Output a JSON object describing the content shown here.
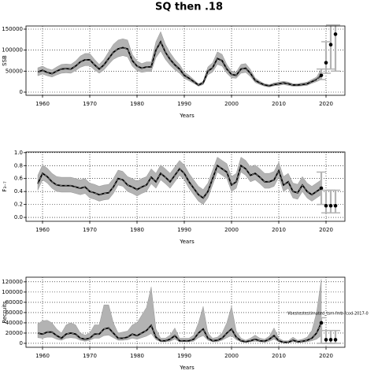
{
  "title": "SQ then .18",
  "chart_data": [
    {
      "type": "line",
      "ylabel": "SSB",
      "xlabel": "Years",
      "grid": true,
      "color": "#000000",
      "band_color": "#b3b3b3",
      "xlim": [
        1956.5,
        2024
      ],
      "xticks": [
        1960,
        1970,
        1980,
        1990,
        2000,
        2010,
        2020
      ],
      "ylim": [
        -7500,
        157500
      ],
      "yticks": [
        0,
        50000,
        100000,
        150000
      ],
      "x": [
        1959,
        1960,
        1961,
        1962,
        1963,
        1964,
        1965,
        1966,
        1967,
        1968,
        1969,
        1970,
        1971,
        1972,
        1973,
        1974,
        1975,
        1976,
        1977,
        1978,
        1979,
        1980,
        1981,
        1982,
        1983,
        1984,
        1985,
        1986,
        1987,
        1988,
        1989,
        1990,
        1991,
        1992,
        1993,
        1994,
        1995,
        1996,
        1997,
        1998,
        1999,
        2000,
        2001,
        2002,
        2003,
        2004,
        2005,
        2006,
        2007,
        2008,
        2009,
        2010,
        2011,
        2012,
        2013,
        2014,
        2015,
        2016,
        2017,
        2018,
        2019
      ],
      "values": [
        48000,
        52000,
        47000,
        44000,
        50000,
        55000,
        56000,
        55000,
        62000,
        72000,
        77000,
        77000,
        65000,
        55000,
        65000,
        80000,
        95000,
        103000,
        106000,
        103000,
        75000,
        62000,
        57000,
        60000,
        60000,
        100000,
        120000,
        95000,
        78000,
        65000,
        55000,
        40000,
        33000,
        25000,
        17000,
        22000,
        50000,
        58000,
        80000,
        75000,
        55000,
        42000,
        40000,
        55000,
        57000,
        45000,
        28000,
        22000,
        17000,
        15000,
        18000,
        20000,
        22000,
        20000,
        17000,
        17000,
        18000,
        20000,
        25000,
        30000,
        40000
      ],
      "lower": [
        39000,
        43000,
        39000,
        36000,
        41000,
        45000,
        46000,
        45000,
        51000,
        59000,
        63000,
        63000,
        53000,
        45000,
        53000,
        66000,
        78000,
        84000,
        87000,
        84000,
        62000,
        51000,
        47000,
        49000,
        49000,
        82000,
        98000,
        78000,
        64000,
        53000,
        45000,
        33000,
        27000,
        21000,
        14000,
        18000,
        41000,
        48000,
        66000,
        62000,
        45000,
        34000,
        33000,
        45000,
        47000,
        37000,
        23000,
        18000,
        14000,
        12000,
        15000,
        16000,
        18000,
        16000,
        14000,
        14000,
        15000,
        16000,
        21000,
        25000,
        30000
      ],
      "upper": [
        58000,
        62000,
        56000,
        53000,
        60000,
        66000,
        67000,
        66000,
        74000,
        86000,
        92000,
        92000,
        78000,
        66000,
        78000,
        96000,
        114000,
        124000,
        127000,
        124000,
        90000,
        74000,
        68000,
        72000,
        72000,
        120000,
        144000,
        114000,
        94000,
        78000,
        66000,
        48000,
        40000,
        30000,
        20000,
        26000,
        60000,
        70000,
        96000,
        90000,
        66000,
        50000,
        48000,
        66000,
        68000,
        54000,
        34000,
        26000,
        20000,
        18000,
        22000,
        24000,
        26000,
        24000,
        20000,
        20000,
        22000,
        24000,
        30000,
        36000,
        55000
      ],
      "projection": {
        "x": [
          2019,
          2020,
          2021,
          2022
        ],
        "values": [
          40000,
          70000,
          113000,
          138000
        ],
        "lower": [
          30000,
          45000,
          55000,
          50000
        ],
        "upper": [
          55000,
          120000,
          160000,
          160000
        ]
      }
    },
    {
      "type": "line",
      "ylabel": "F₃₋₇",
      "xlabel": "Years",
      "grid": true,
      "color": "#000000",
      "band_color": "#b3b3b3",
      "xlim": [
        1956.5,
        2024
      ],
      "xticks": [
        1960,
        1970,
        1980,
        1990,
        2000,
        2010,
        2020
      ],
      "ylim": [
        -0.06,
        1.01
      ],
      "yticks": [
        {
          "value": 0,
          "label": "0.0"
        },
        0.2,
        0.4,
        0.6,
        0.8,
        {
          "value": 1,
          "label": "1.0"
        }
      ],
      "x": [
        1959,
        1960,
        1961,
        1962,
        1963,
        1964,
        1965,
        1966,
        1967,
        1968,
        1969,
        1970,
        1971,
        1972,
        1973,
        1974,
        1975,
        1976,
        1977,
        1978,
        1979,
        1980,
        1981,
        1982,
        1983,
        1984,
        1985,
        1986,
        1987,
        1988,
        1989,
        1990,
        1991,
        1992,
        1993,
        1994,
        1995,
        1996,
        1997,
        1998,
        1999,
        2000,
        2001,
        2002,
        2003,
        2004,
        2005,
        2006,
        2007,
        2008,
        2009,
        2010,
        2011,
        2012,
        2013,
        2014,
        2015,
        2016,
        2017,
        2018,
        2019
      ],
      "values": [
        0.52,
        0.68,
        0.63,
        0.55,
        0.5,
        0.49,
        0.49,
        0.49,
        0.47,
        0.45,
        0.47,
        0.4,
        0.38,
        0.35,
        0.37,
        0.38,
        0.47,
        0.6,
        0.58,
        0.5,
        0.47,
        0.43,
        0.47,
        0.5,
        0.62,
        0.55,
        0.68,
        0.62,
        0.55,
        0.65,
        0.75,
        0.68,
        0.55,
        0.45,
        0.35,
        0.3,
        0.4,
        0.6,
        0.8,
        0.75,
        0.7,
        0.5,
        0.55,
        0.8,
        0.75,
        0.65,
        0.68,
        0.62,
        0.55,
        0.55,
        0.58,
        0.72,
        0.5,
        0.55,
        0.4,
        0.38,
        0.5,
        0.4,
        0.35,
        0.4,
        0.45
      ],
      "lower": [
        0.42,
        0.58,
        0.53,
        0.45,
        0.4,
        0.39,
        0.39,
        0.39,
        0.37,
        0.35,
        0.37,
        0.3,
        0.28,
        0.25,
        0.27,
        0.28,
        0.37,
        0.5,
        0.48,
        0.4,
        0.37,
        0.33,
        0.37,
        0.4,
        0.52,
        0.45,
        0.58,
        0.52,
        0.45,
        0.55,
        0.65,
        0.58,
        0.45,
        0.35,
        0.25,
        0.2,
        0.3,
        0.5,
        0.7,
        0.65,
        0.6,
        0.4,
        0.45,
        0.7,
        0.65,
        0.55,
        0.58,
        0.52,
        0.45,
        0.45,
        0.48,
        0.62,
        0.4,
        0.45,
        0.3,
        0.28,
        0.4,
        0.3,
        0.25,
        0.3,
        0.35
      ],
      "upper": [
        0.65,
        0.81,
        0.76,
        0.68,
        0.63,
        0.62,
        0.62,
        0.62,
        0.6,
        0.58,
        0.6,
        0.53,
        0.51,
        0.48,
        0.5,
        0.51,
        0.6,
        0.73,
        0.71,
        0.63,
        0.6,
        0.56,
        0.6,
        0.63,
        0.75,
        0.68,
        0.81,
        0.75,
        0.68,
        0.78,
        0.88,
        0.81,
        0.68,
        0.58,
        0.48,
        0.43,
        0.53,
        0.73,
        0.93,
        0.88,
        0.83,
        0.63,
        0.68,
        0.93,
        0.88,
        0.78,
        0.81,
        0.75,
        0.68,
        0.68,
        0.71,
        0.85,
        0.63,
        0.68,
        0.53,
        0.51,
        0.63,
        0.53,
        0.48,
        0.53,
        0.58
      ],
      "projection": {
        "x": [
          2019,
          2020,
          2021,
          2022
        ],
        "values": [
          0.45,
          0.18,
          0.18,
          0.18
        ],
        "lower": [
          0.2,
          0.07,
          0.07,
          0.07
        ],
        "upper": [
          0.7,
          0.42,
          0.42,
          0.42
        ]
      }
    },
    {
      "type": "line",
      "ylabel": "Recruits",
      "xlabel": "Years",
      "grid": true,
      "color": "#000000",
      "band_color": "#b3b3b3",
      "annotation": "Vbestestestimated_tsm-fmb-fcod-2017-0",
      "xlim": [
        1956.5,
        2024
      ],
      "xticks": [
        1960,
        1970,
        1980,
        1990,
        2000,
        2010,
        2020
      ],
      "ylim": [
        -7700,
        129000
      ],
      "yticks": [
        0,
        20000,
        40000,
        60000,
        80000,
        100000,
        120000
      ],
      "x": [
        1959,
        1960,
        1961,
        1962,
        1963,
        1964,
        1965,
        1966,
        1967,
        1968,
        1969,
        1970,
        1971,
        1972,
        1973,
        1974,
        1975,
        1976,
        1977,
        1978,
        1979,
        1980,
        1981,
        1982,
        1983,
        1984,
        1985,
        1986,
        1987,
        1988,
        1989,
        1990,
        1991,
        1992,
        1993,
        1994,
        1995,
        1996,
        1997,
        1998,
        1999,
        2000,
        2001,
        2002,
        2003,
        2004,
        2005,
        2006,
        2007,
        2008,
        2009,
        2010,
        2011,
        2012,
        2013,
        2014,
        2015,
        2016,
        2017,
        2018,
        2019
      ],
      "values": [
        20000,
        18000,
        22000,
        22000,
        15000,
        10000,
        18000,
        20000,
        18000,
        10000,
        8000,
        10000,
        18000,
        18000,
        28000,
        30000,
        20000,
        10000,
        10000,
        12000,
        18000,
        15000,
        20000,
        25000,
        35000,
        12000,
        5000,
        5000,
        8000,
        15000,
        5000,
        5000,
        5000,
        8000,
        20000,
        28000,
        10000,
        5000,
        6000,
        10000,
        20000,
        28000,
        12000,
        5000,
        3000,
        5000,
        8000,
        5000,
        4000,
        8000,
        15000,
        5000,
        2000,
        2000,
        6000,
        3000,
        4000,
        6000,
        10000,
        20000,
        40000
      ],
      "lower": [
        11000,
        10000,
        12000,
        12000,
        8000,
        6000,
        10000,
        11000,
        10000,
        6000,
        4000,
        6000,
        10000,
        10000,
        15000,
        16000,
        11000,
        6000,
        6000,
        7000,
        10000,
        8000,
        11000,
        14000,
        19000,
        7000,
        3000,
        3000,
        4000,
        8000,
        3000,
        3000,
        3000,
        4000,
        11000,
        15000,
        6000,
        3000,
        3000,
        6000,
        11000,
        15000,
        7000,
        3000,
        2000,
        3000,
        4000,
        3000,
        2000,
        4000,
        8000,
        3000,
        1000,
        1000,
        3000,
        2000,
        2000,
        3000,
        5000,
        8000,
        15000
      ],
      "upper": [
        38000,
        44000,
        45000,
        40000,
        28000,
        20000,
        36000,
        40000,
        36000,
        20000,
        16000,
        20000,
        36000,
        36000,
        75000,
        75000,
        40000,
        20000,
        22000,
        24000,
        36000,
        40000,
        55000,
        70000,
        110000,
        28000,
        10000,
        10000,
        16000,
        30000,
        10000,
        10000,
        10000,
        16000,
        40000,
        72000,
        20000,
        10000,
        12000,
        20000,
        40000,
        72000,
        24000,
        10000,
        6000,
        10000,
        16000,
        10000,
        8000,
        14000,
        30000,
        10000,
        5000,
        5000,
        12000,
        6000,
        8000,
        12000,
        25000,
        60000,
        125000
      ],
      "projection": {
        "x": [
          2019,
          2020,
          2021,
          2022
        ],
        "values": [
          40000,
          7000,
          7000,
          7000
        ],
        "lower": [
          0,
          0,
          0,
          0
        ],
        "upper": [
          50000,
          25000,
          25000,
          25000
        ]
      }
    }
  ]
}
